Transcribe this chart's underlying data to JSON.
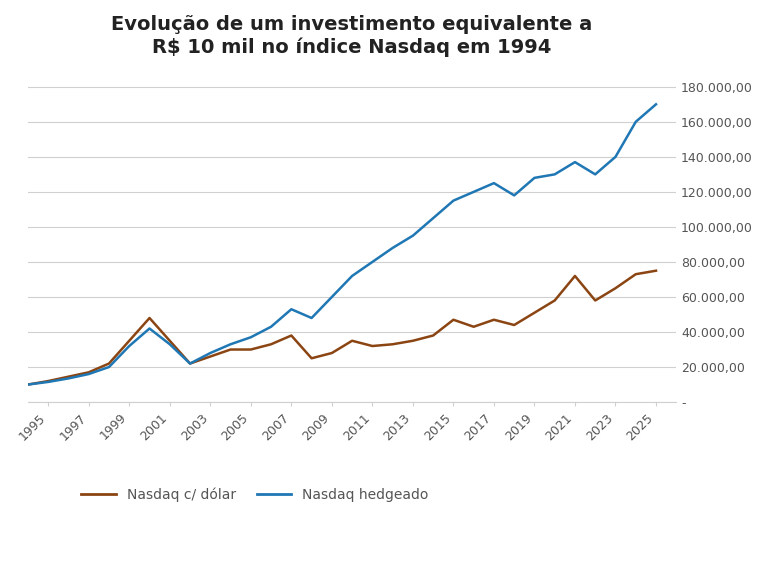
{
  "title": "Evolução de um investimento equivalente a\nR$ 10 mil no índice Nasdaq em 1994",
  "title_fontsize": 14,
  "background_color": "#ffffff",
  "years": [
    1994,
    1995,
    1996,
    1997,
    1998,
    1999,
    2000,
    2001,
    2002,
    2003,
    2004,
    2005,
    2006,
    2007,
    2008,
    2009,
    2010,
    2011,
    2012,
    2013,
    2014,
    2015,
    2016,
    2017,
    2018,
    2019,
    2020,
    2021,
    2022,
    2023,
    2024,
    2025
  ],
  "nasdaq_dollar": [
    10000,
    12000,
    14500,
    17000,
    22000,
    35000,
    48000,
    35000,
    22000,
    26000,
    30000,
    30000,
    33000,
    38000,
    25000,
    28000,
    35000,
    32000,
    33000,
    35000,
    38000,
    47000,
    43000,
    47000,
    44000,
    51000,
    58000,
    72000,
    58000,
    65000,
    73000,
    75000
  ],
  "nasdaq_hedged": [
    10000,
    11500,
    13500,
    16000,
    20000,
    32000,
    42000,
    33000,
    22000,
    28000,
    33000,
    37000,
    43000,
    53000,
    48000,
    60000,
    72000,
    80000,
    88000,
    95000,
    105000,
    115000,
    120000,
    125000,
    118000,
    128000,
    130000,
    137000,
    130000,
    140000,
    160000,
    170000
  ],
  "dollar_color": "#8B4513",
  "hedged_color": "#1F77B4",
  "dollar_label": "Nasdaq c/ dólar",
  "hedged_label": "Nasdaq hedgeado",
  "xtick_labels": [
    "1995",
    "1997",
    "1999",
    "2001",
    "2003",
    "2005",
    "2007",
    "2009",
    "2011",
    "2013",
    "2015",
    "2017",
    "2019",
    "2021",
    "2023",
    "2025"
  ],
  "xtick_positions": [
    1995,
    1997,
    1999,
    2001,
    2003,
    2005,
    2007,
    2009,
    2011,
    2013,
    2015,
    2017,
    2019,
    2021,
    2023,
    2025
  ],
  "ytick_values": [
    0,
    20000,
    40000,
    60000,
    80000,
    100000,
    120000,
    140000,
    160000,
    180000
  ],
  "ytick_labels": [
    "-",
    "20.000,00",
    "40.000,00",
    "60.000,00",
    "80.000,00",
    "100.000,00",
    "120.000,00",
    "140.000,00",
    "160.000,00",
    "180.000,00"
  ],
  "ylim": [
    0,
    190000
  ],
  "line_width": 1.8,
  "grid_color": "#d0d0d0",
  "axis_color": "#555555",
  "tick_fontsize": 9,
  "legend_fontsize": 10
}
